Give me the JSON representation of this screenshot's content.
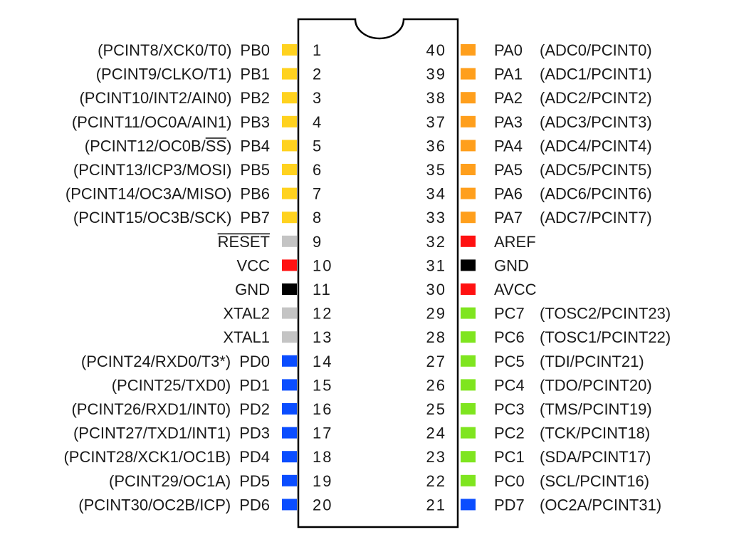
{
  "colors": {
    "portB": "#FFD21F",
    "portA": "#FF9F1C",
    "portC": "#7FE51F",
    "portD": "#0A4DFF",
    "power": "#FF1111",
    "ground": "#000000",
    "misc": "#C4C4C4"
  },
  "left_pins": [
    {
      "num": "1",
      "name": "PB0",
      "alt": "(PCINT8/XCK0/T0)",
      "color": "#FFD21F"
    },
    {
      "num": "2",
      "name": "PB1",
      "alt": "(PCINT9/CLKO/T1)",
      "color": "#FFD21F"
    },
    {
      "num": "3",
      "name": "PB2",
      "alt": "(PCINT10/INT2/AIN0)",
      "color": "#FFD21F"
    },
    {
      "num": "4",
      "name": "PB3",
      "alt": "(PCINT11/OC0A/AIN1)",
      "color": "#FFD21F"
    },
    {
      "num": "5",
      "name": "PB4",
      "alt": "(PCINT12/OC0B/SS)",
      "color": "#FFD21F"
    },
    {
      "num": "6",
      "name": "PB5",
      "alt": "(PCINT13/ICP3/MOSI)",
      "color": "#FFD21F"
    },
    {
      "num": "7",
      "name": "PB6",
      "alt": "(PCINT14/OC3A/MISO)",
      "color": "#FFD21F"
    },
    {
      "num": "8",
      "name": "PB7",
      "alt": "(PCINT15/OC3B/SCK)",
      "color": "#FFD21F"
    },
    {
      "num": "9",
      "name": "RESET",
      "alt": "",
      "color": "#C4C4C4"
    },
    {
      "num": "10",
      "name": "VCC",
      "alt": "",
      "color": "#FF1111"
    },
    {
      "num": "11",
      "name": "GND",
      "alt": "",
      "color": "#000000"
    },
    {
      "num": "12",
      "name": "XTAL2",
      "alt": "",
      "color": "#C4C4C4"
    },
    {
      "num": "13",
      "name": "XTAL1",
      "alt": "",
      "color": "#C4C4C4"
    },
    {
      "num": "14",
      "name": "PD0",
      "alt": "(PCINT24/RXD0/T3*)",
      "color": "#0A4DFF"
    },
    {
      "num": "15",
      "name": "PD1",
      "alt": "(PCINT25/TXD0)",
      "color": "#0A4DFF"
    },
    {
      "num": "16",
      "name": "PD2",
      "alt": "(PCINT26/RXD1/INT0)",
      "color": "#0A4DFF"
    },
    {
      "num": "17",
      "name": "PD3",
      "alt": "(PCINT27/TXD1/INT1)",
      "color": "#0A4DFF"
    },
    {
      "num": "18",
      "name": "PD4",
      "alt": "(PCINT28/XCK1/OC1B)",
      "color": "#0A4DFF"
    },
    {
      "num": "19",
      "name": "PD5",
      "alt": "(PCINT29/OC1A)",
      "color": "#0A4DFF"
    },
    {
      "num": "20",
      "name": "PD6",
      "alt": "(PCINT30/OC2B/ICP)",
      "color": "#0A4DFF"
    }
  ],
  "right_pins": [
    {
      "num": "40",
      "name": "PA0",
      "alt": "(ADC0/PCINT0)",
      "color": "#FF9F1C"
    },
    {
      "num": "39",
      "name": "PA1",
      "alt": "(ADC1/PCINT1)",
      "color": "#FF9F1C"
    },
    {
      "num": "38",
      "name": "PA2",
      "alt": "(ADC2/PCINT2)",
      "color": "#FF9F1C"
    },
    {
      "num": "37",
      "name": "PA3",
      "alt": "(ADC3/PCINT3)",
      "color": "#FF9F1C"
    },
    {
      "num": "36",
      "name": "PA4",
      "alt": "(ADC4/PCINT4)",
      "color": "#FF9F1C"
    },
    {
      "num": "35",
      "name": "PA5",
      "alt": "(ADC5/PCINT5)",
      "color": "#FF9F1C"
    },
    {
      "num": "34",
      "name": "PA6",
      "alt": "(ADC6/PCINT6)",
      "color": "#FF9F1C"
    },
    {
      "num": "33",
      "name": "PA7",
      "alt": "(ADC7/PCINT7)",
      "color": "#FF9F1C"
    },
    {
      "num": "32",
      "name": "AREF",
      "alt": "",
      "color": "#FF1111"
    },
    {
      "num": "31",
      "name": "GND",
      "alt": "",
      "color": "#000000"
    },
    {
      "num": "30",
      "name": "AVCC",
      "alt": "",
      "color": "#FF1111"
    },
    {
      "num": "29",
      "name": "PC7",
      "alt": "(TOSC2/PCINT23)",
      "color": "#7FE51F"
    },
    {
      "num": "28",
      "name": "PC6",
      "alt": "(TOSC1/PCINT22)",
      "color": "#7FE51F"
    },
    {
      "num": "27",
      "name": "PC5",
      "alt": "(TDI/PCINT21)",
      "color": "#7FE51F"
    },
    {
      "num": "26",
      "name": "PC4",
      "alt": "(TDO/PCINT20)",
      "color": "#7FE51F"
    },
    {
      "num": "25",
      "name": "PC3",
      "alt": "(TMS/PCINT19)",
      "color": "#7FE51F"
    },
    {
      "num": "24",
      "name": "PC2",
      "alt": "(TCK/PCINT18)",
      "color": "#7FE51F"
    },
    {
      "num": "23",
      "name": "PC1",
      "alt": "(SDA/PCINT17)",
      "color": "#7FE51F"
    },
    {
      "num": "22",
      "name": "PC0",
      "alt": "(SCL/PCINT16)",
      "color": "#7FE51F"
    },
    {
      "num": "21",
      "name": "PD7",
      "alt": "(OC2A/PCINT31)",
      "color": "#0A4DFF"
    }
  ]
}
